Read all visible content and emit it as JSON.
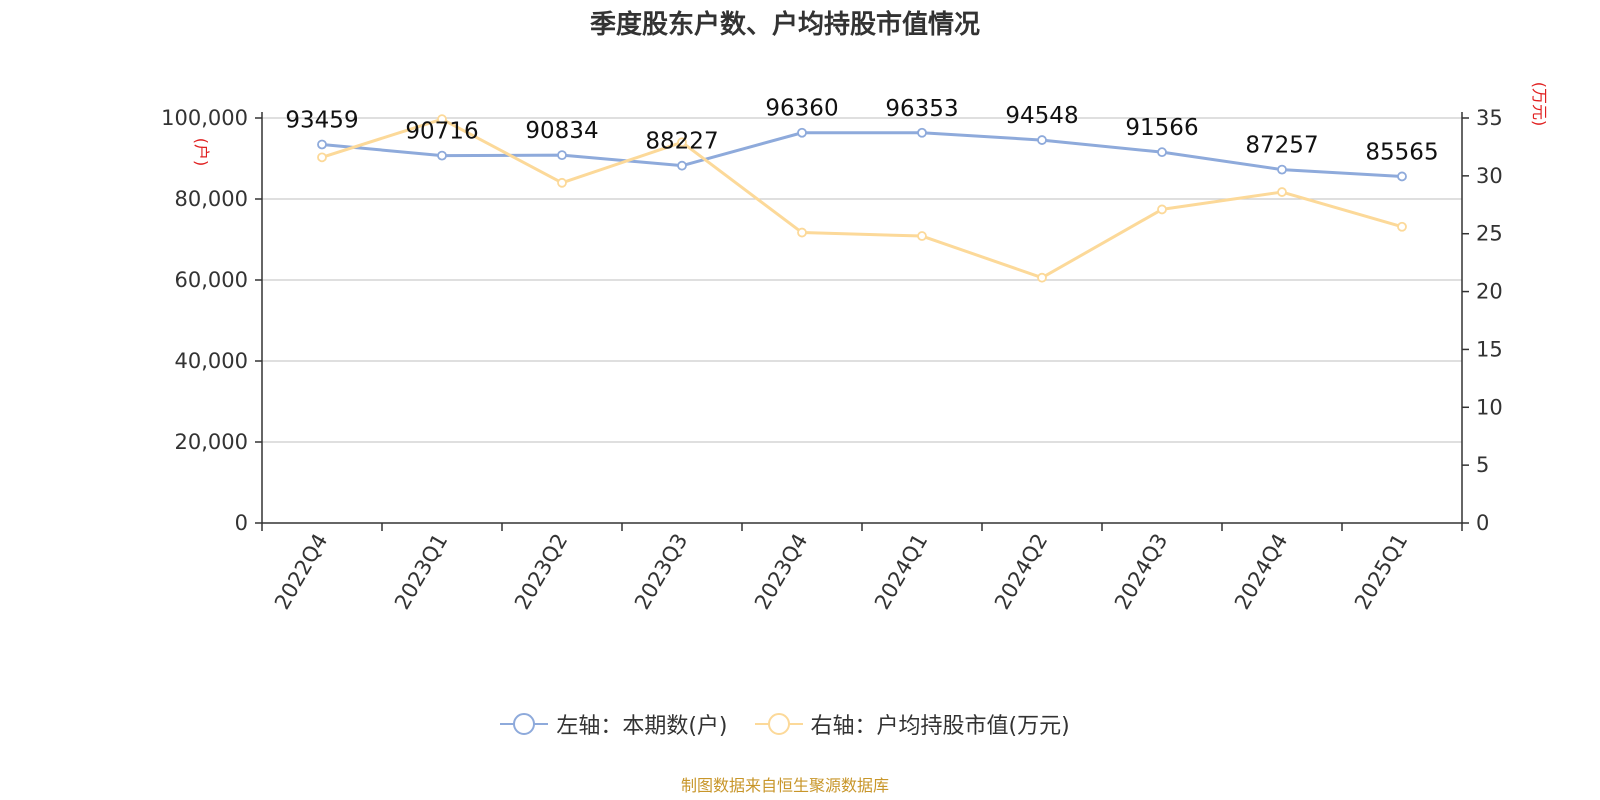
{
  "chart_data": {
    "type": "line",
    "title": "季度股东户数、户均持股市值情况",
    "categories": [
      "2022Q4",
      "2023Q1",
      "2023Q2",
      "2023Q3",
      "2023Q4",
      "2024Q1",
      "2024Q2",
      "2024Q3",
      "2024Q4",
      "2025Q1"
    ],
    "series": [
      {
        "name": "左轴：本期数(户)",
        "axis": "left",
        "color": "#8eaadb",
        "values": [
          93459,
          90716,
          90834,
          88227,
          96360,
          96353,
          94548,
          91566,
          87257,
          85565
        ],
        "labels": [
          "93459",
          "90716",
          "90834",
          "88227",
          "96360",
          "96353",
          "94548",
          "91566",
          "87257",
          "85565"
        ]
      },
      {
        "name": "右轴：户均持股市值(万元)",
        "axis": "right",
        "color": "#fcd999",
        "values": [
          31.6,
          34.9,
          29.4,
          32.9,
          25.1,
          24.8,
          21.2,
          27.1,
          28.6,
          25.6
        ]
      }
    ],
    "y_left": {
      "min": 0,
      "max": 100000,
      "ticks": [
        "0",
        "20,000",
        "40,000",
        "60,000",
        "80,000",
        "100,000"
      ],
      "tick_values": [
        0,
        20000,
        40000,
        60000,
        80000,
        100000
      ],
      "unit": "(户)",
      "unit_color": "#e02020"
    },
    "y_right": {
      "min": 0,
      "max": 35,
      "ticks": [
        "0",
        "5",
        "10",
        "15",
        "20",
        "25",
        "30",
        "35"
      ],
      "tick_values": [
        0,
        5,
        10,
        15,
        20,
        25,
        30,
        35
      ],
      "unit": "(万元)",
      "unit_color": "#e02020"
    },
    "grid": true,
    "legend_position": "bottom"
  },
  "source_note": "制图数据来自恒生聚源数据库",
  "source_color": "#c8962a"
}
